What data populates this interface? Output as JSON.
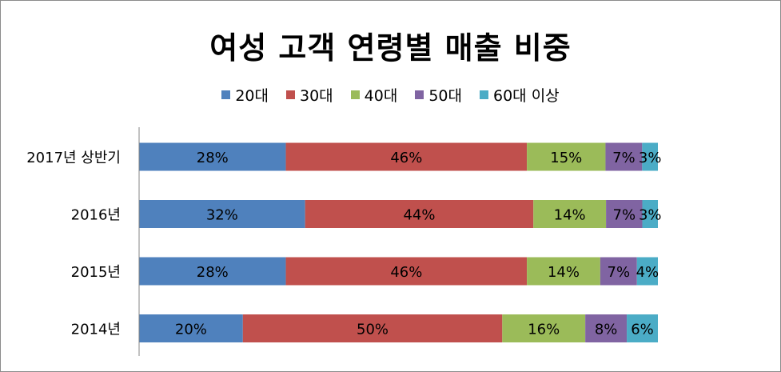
{
  "chart_data": {
    "type": "bar",
    "orientation": "horizontal",
    "stacked": true,
    "percent_stacked": true,
    "title": "여성 고객 연령별 매출 비중",
    "categories": [
      "2017년 상반기",
      "2016년",
      "2015년",
      "2014년"
    ],
    "series": [
      {
        "name": "20대",
        "color": "#4f81bd",
        "values": [
          28,
          32,
          28,
          20
        ],
        "labels": [
          "28%",
          "32%",
          "28%",
          "20%"
        ]
      },
      {
        "name": "30대",
        "color": "#c0504d",
        "values": [
          46,
          44,
          46,
          50
        ],
        "labels": [
          "46%",
          "44%",
          "46%",
          "50%"
        ]
      },
      {
        "name": "40대",
        "color": "#9bbb59",
        "values": [
          15,
          14,
          14,
          16
        ],
        "labels": [
          "15%",
          "14%",
          "14%",
          "16%"
        ]
      },
      {
        "name": "50대",
        "color": "#8064a2",
        "values": [
          7,
          7,
          7,
          8
        ],
        "labels": [
          "7%",
          "7%",
          "7%",
          "8%"
        ]
      },
      {
        "name": "60대 이상",
        "color": "#4bacc6",
        "values": [
          3,
          3,
          4,
          6
        ],
        "labels": [
          "3%",
          "3%",
          "4%",
          "6%"
        ]
      }
    ],
    "legend_position": "top",
    "grid": false
  }
}
